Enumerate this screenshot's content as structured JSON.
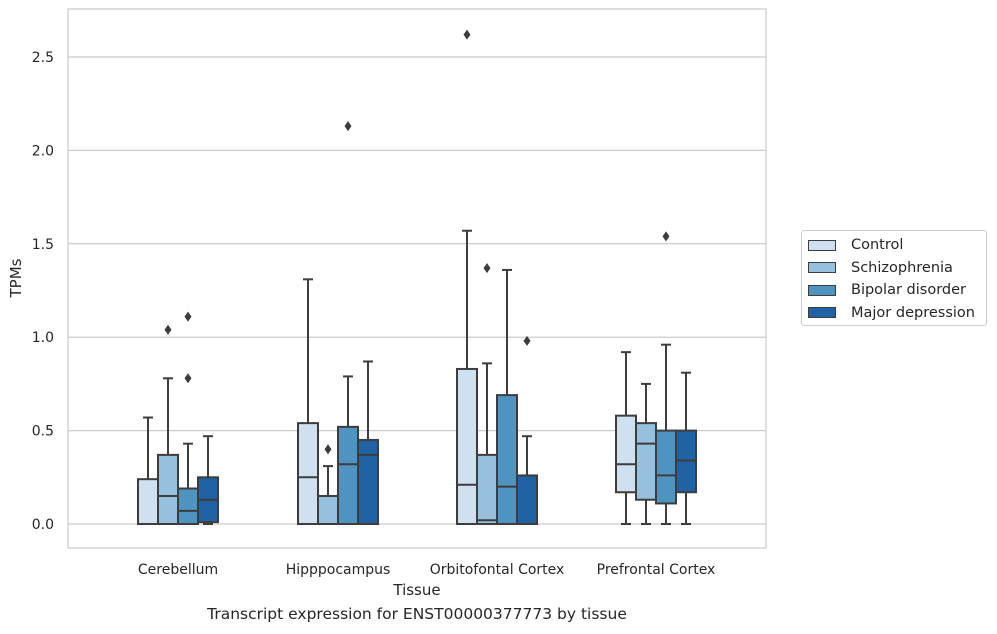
{
  "chart_data": {
    "type": "box",
    "title": "",
    "xlabel": "Tissue",
    "ylabel": "TPMs",
    "caption": "Transcript expression for ENST00000377773 by tissue",
    "ylim": [
      -0.13,
      2.75
    ],
    "yticks": [
      "0.0",
      "0.5",
      "1.0",
      "1.5",
      "2.0",
      "2.5"
    ],
    "grid": "horizontal",
    "legend_position": "right",
    "categories": [
      "Cerebellum",
      "Hipppocampus",
      "Orbitofontal Cortex",
      "Prefrontal Cortex"
    ],
    "series": [
      {
        "name": "Control",
        "color": "#cfe0f1",
        "boxes": [
          {
            "whislo": 0.0,
            "q1": 0.0,
            "med": 0.0,
            "q3": 0.24,
            "whishi": 0.57,
            "fliers": []
          },
          {
            "whislo": 0.0,
            "q1": 0.0,
            "med": 0.25,
            "q3": 0.54,
            "whishi": 1.31,
            "fliers": []
          },
          {
            "whislo": 0.0,
            "q1": 0.0,
            "med": 0.21,
            "q3": 0.83,
            "whishi": 1.57,
            "fliers": [
              2.62
            ]
          },
          {
            "whislo": 0.0,
            "q1": 0.17,
            "med": 0.32,
            "q3": 0.58,
            "whishi": 0.92,
            "fliers": []
          }
        ]
      },
      {
        "name": "Schizophrenia",
        "color": "#96c0dd",
        "boxes": [
          {
            "whislo": 0.0,
            "q1": 0.0,
            "med": 0.15,
            "q3": 0.37,
            "whishi": 0.78,
            "fliers": [
              1.04
            ]
          },
          {
            "whislo": 0.0,
            "q1": 0.0,
            "med": 0.0,
            "q3": 0.15,
            "whishi": 0.31,
            "fliers": [
              0.4
            ]
          },
          {
            "whislo": 0.0,
            "q1": 0.0,
            "med": 0.02,
            "q3": 0.37,
            "whishi": 0.86,
            "fliers": [
              1.37
            ]
          },
          {
            "whislo": 0.0,
            "q1": 0.13,
            "med": 0.43,
            "q3": 0.54,
            "whishi": 0.75,
            "fliers": []
          }
        ]
      },
      {
        "name": "Bipolar disorder",
        "color": "#4f93c0",
        "boxes": [
          {
            "whislo": 0.0,
            "q1": 0.0,
            "med": 0.07,
            "q3": 0.19,
            "whishi": 0.43,
            "fliers": [
              0.78,
              1.11
            ]
          },
          {
            "whislo": 0.0,
            "q1": 0.0,
            "med": 0.32,
            "q3": 0.52,
            "whishi": 0.79,
            "fliers": [
              2.13
            ]
          },
          {
            "whislo": 0.0,
            "q1": 0.0,
            "med": 0.2,
            "q3": 0.69,
            "whishi": 1.36,
            "fliers": []
          },
          {
            "whislo": 0.0,
            "q1": 0.11,
            "med": 0.26,
            "q3": 0.5,
            "whishi": 0.96,
            "fliers": [
              1.54
            ]
          }
        ]
      },
      {
        "name": "Major depression",
        "color": "#2162a4",
        "boxes": [
          {
            "whislo": 0.0,
            "q1": 0.01,
            "med": 0.13,
            "q3": 0.25,
            "whishi": 0.47,
            "fliers": []
          },
          {
            "whislo": 0.0,
            "q1": 0.0,
            "med": 0.37,
            "q3": 0.45,
            "whishi": 0.87,
            "fliers": []
          },
          {
            "whislo": 0.0,
            "q1": 0.0,
            "med": 0.0,
            "q3": 0.26,
            "whishi": 0.47,
            "fliers": [
              0.98
            ]
          },
          {
            "whislo": 0.0,
            "q1": 0.17,
            "med": 0.34,
            "q3": 0.5,
            "whishi": 0.81,
            "fliers": []
          }
        ]
      }
    ]
  }
}
